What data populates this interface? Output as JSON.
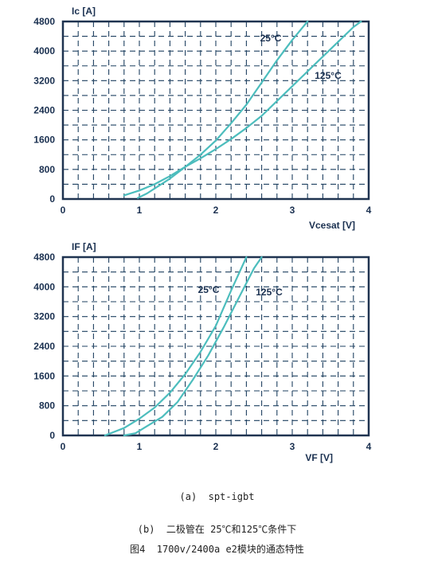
{
  "chart_data": [
    {
      "type": "line",
      "ylabel": "Ic [A]",
      "xlabel": "Vcesat [V]",
      "xlim": [
        0,
        4
      ],
      "ylim": [
        0,
        4800
      ],
      "xticks": [
        0,
        1,
        2,
        3,
        4
      ],
      "yticks": [
        0,
        800,
        1600,
        2400,
        3200,
        4000,
        4800
      ],
      "grid": true,
      "series": [
        {
          "name": "25°C",
          "x": [
            0.98,
            1.1,
            1.25,
            1.4,
            1.6,
            1.8,
            2.0,
            2.2,
            2.4,
            2.6,
            2.8,
            3.0,
            3.2
          ],
          "y": [
            30,
            150,
            350,
            550,
            870,
            1200,
            1580,
            2050,
            2550,
            3150,
            3750,
            4300,
            4800
          ]
        },
        {
          "name": "125°C",
          "x": [
            0.8,
            1.0,
            1.2,
            1.4,
            1.6,
            1.8,
            2.0,
            2.2,
            2.4,
            2.6,
            2.8,
            3.0,
            3.2,
            3.4,
            3.6,
            3.8,
            3.9
          ],
          "y": [
            100,
            230,
            400,
            620,
            870,
            1100,
            1350,
            1620,
            1920,
            2250,
            2650,
            3050,
            3450,
            3850,
            4250,
            4650,
            4800
          ]
        }
      ]
    },
    {
      "type": "line",
      "ylabel": "IF [A]",
      "xlabel": "VF [V]",
      "xlim": [
        0,
        4
      ],
      "ylim": [
        0,
        4800
      ],
      "xticks": [
        0,
        1,
        2,
        3,
        4
      ],
      "yticks": [
        0,
        800,
        1600,
        2400,
        3200,
        4000,
        4800
      ],
      "grid": true,
      "series": [
        {
          "name": "25°C",
          "x": [
            0.55,
            0.8,
            1.0,
            1.2,
            1.4,
            1.6,
            1.8,
            2.0,
            2.2,
            2.4
          ],
          "y": [
            0,
            200,
            450,
            750,
            1150,
            1650,
            2250,
            2950,
            3900,
            4800
          ]
        },
        {
          "name": "125°C",
          "x": [
            0.8,
            0.95,
            1.1,
            1.3,
            1.5,
            1.7,
            1.9,
            2.1,
            2.3,
            2.5,
            2.6
          ],
          "y": [
            0,
            60,
            250,
            500,
            900,
            1500,
            2150,
            2900,
            3700,
            4500,
            4800
          ]
        }
      ]
    }
  ],
  "captions": {
    "a": "(a)  spt-igbt",
    "b": "(b)  二极管在 25℃和125℃条件下",
    "fig": "图4  1700v/2400a e2模块的通态特性"
  },
  "colors": {
    "curve": "#4cbdbd",
    "grid": "#1f4060",
    "frame": "#1f3350",
    "text": "#1a3050"
  }
}
